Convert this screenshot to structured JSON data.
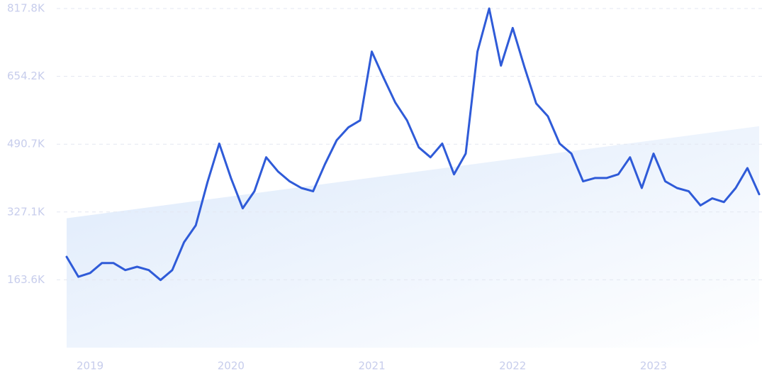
{
  "chart_data": {
    "type": "line",
    "categories": [
      null,
      null,
      "2019",
      null,
      null,
      null,
      null,
      null,
      null,
      null,
      null,
      null,
      null,
      null,
      "2020",
      null,
      null,
      null,
      null,
      null,
      null,
      null,
      null,
      null,
      null,
      null,
      "2021",
      null,
      null,
      null,
      null,
      null,
      null,
      null,
      null,
      null,
      null,
      null,
      "2022",
      null,
      null,
      null,
      null,
      null,
      null,
      null,
      null,
      null,
      null,
      null,
      "2023",
      null,
      null,
      null,
      null,
      null,
      null,
      null,
      null,
      null
    ],
    "series": [
      {
        "color": "#2f5bd8",
        "values": [
          219000,
          171000,
          180000,
          204000,
          204000,
          187000,
          195000,
          187000,
          163000,
          187000,
          254000,
          295000,
          399000,
          492000,
          409000,
          336000,
          377000,
          459000,
          425000,
          401000,
          385000,
          377000,
          442000,
          500000,
          531000,
          548000,
          714000,
          651000,
          591000,
          548000,
          483000,
          459000,
          492000,
          418000,
          468000,
          714000,
          817800,
          680000,
          771000,
          677000,
          589000,
          558000,
          492000,
          468000,
          401000,
          409000,
          409000,
          418000,
          459000,
          385000,
          468000,
          401000,
          385000,
          377000,
          343000,
          360000,
          351000,
          385000,
          433000,
          370000
        ]
      }
    ],
    "trend": [
      312000,
      534000
    ],
    "ylim": [
      0,
      817800
    ],
    "yticks": [
      {
        "value": 163600,
        "label": "163.6K"
      },
      {
        "value": 327100,
        "label": "327.1K"
      },
      {
        "value": 490700,
        "label": "490.7K"
      },
      {
        "value": 654200,
        "label": "654.2K"
      },
      {
        "value": 817800,
        "label": "817.8K"
      }
    ],
    "grid": true
  }
}
